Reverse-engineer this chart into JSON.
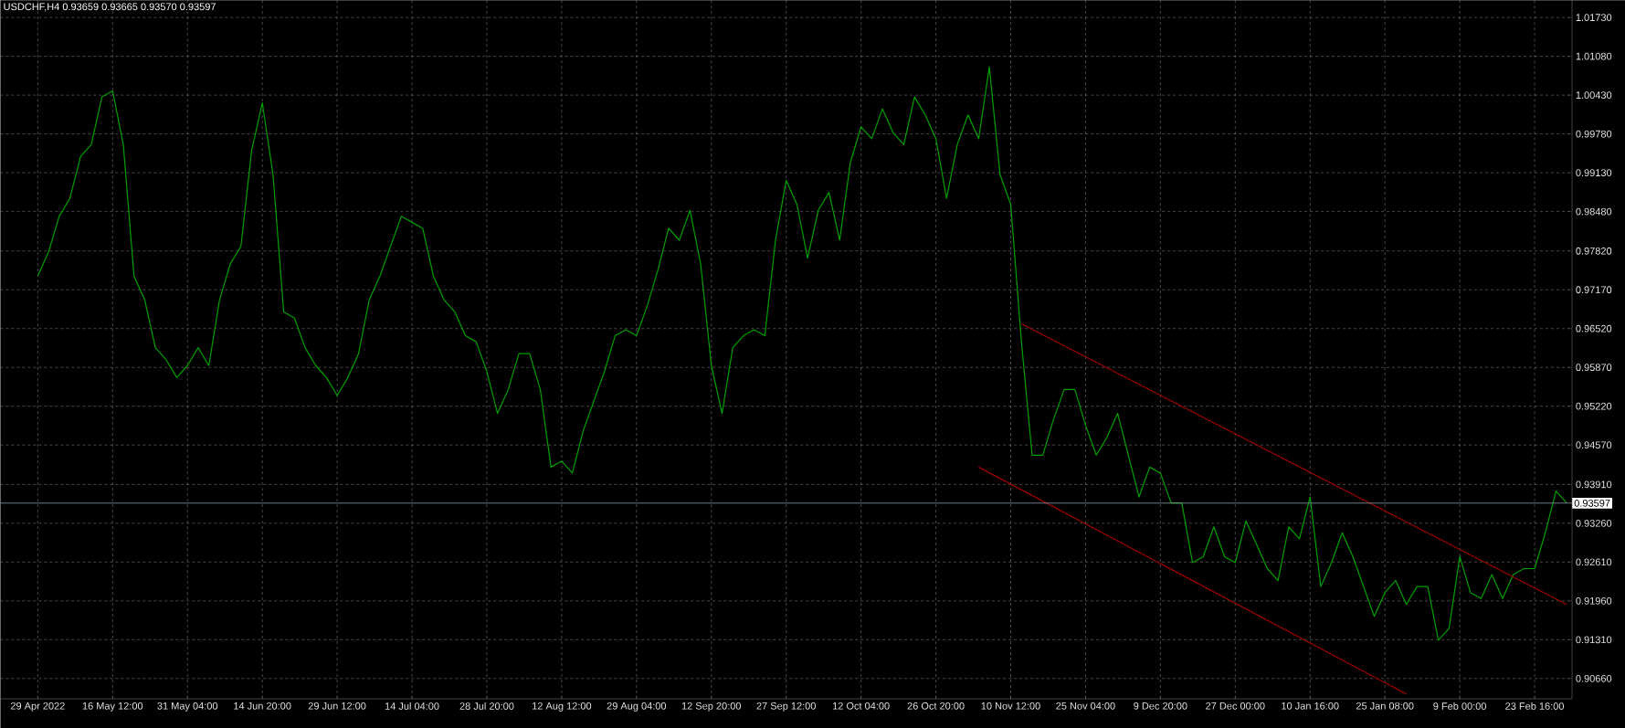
{
  "chart_data": {
    "type": "line",
    "title": "USDCHF,H4  0.93659 0.93665 0.93570 0.93597",
    "categories": [
      "29 Apr 2022",
      null,
      null,
      null,
      null,
      null,
      null,
      "16 May 12:00",
      null,
      null,
      null,
      null,
      null,
      null,
      "31 May 04:00",
      null,
      null,
      null,
      null,
      null,
      null,
      "14 Jun 20:00",
      null,
      null,
      null,
      null,
      null,
      null,
      "29 Jun 12:00",
      null,
      null,
      null,
      null,
      null,
      null,
      "14 Jul 04:00",
      null,
      null,
      null,
      null,
      null,
      null,
      "28 Jul 20:00",
      null,
      null,
      null,
      null,
      null,
      null,
      "12 Aug 12:00",
      null,
      null,
      null,
      null,
      null,
      null,
      "29 Aug 04:00",
      null,
      null,
      null,
      null,
      null,
      null,
      "12 Sep 20:00",
      null,
      null,
      null,
      null,
      null,
      null,
      "27 Sep 12:00",
      null,
      null,
      null,
      null,
      null,
      null,
      "12 Oct 04:00",
      null,
      null,
      null,
      null,
      null,
      null,
      "26 Oct 20:00",
      null,
      null,
      null,
      null,
      null,
      null,
      "10 Nov 12:00",
      null,
      null,
      null,
      null,
      null,
      null,
      "25 Nov 04:00",
      null,
      null,
      null,
      null,
      null,
      null,
      "9 Dec 20:00",
      null,
      null,
      null,
      null,
      null,
      null,
      "27 Dec 00:00",
      null,
      null,
      null,
      null,
      null,
      null,
      "10 Jan 16:00",
      null,
      null,
      null,
      null,
      null,
      null,
      "25 Jan 08:00",
      null,
      null,
      null,
      null,
      null,
      null,
      "9 Feb 00:00",
      null,
      null,
      null,
      null,
      null,
      null,
      "23 Feb 16:00",
      null,
      null,
      null
    ],
    "series": [
      {
        "color": "#00a000",
        "values": [
          0.974,
          0.978,
          0.984,
          0.987,
          0.994,
          0.996,
          1.004,
          1.005,
          0.996,
          0.974,
          0.97,
          0.962,
          0.96,
          0.957,
          0.959,
          0.962,
          0.959,
          0.97,
          0.976,
          0.979,
          0.995,
          1.003,
          0.991,
          0.968,
          0.967,
          0.962,
          0.959,
          0.957,
          0.954,
          0.957,
          0.961,
          0.97,
          0.974,
          0.979,
          0.984,
          0.983,
          0.982,
          0.974,
          0.97,
          0.968,
          0.964,
          0.963,
          0.958,
          0.951,
          0.955,
          0.961,
          0.961,
          0.955,
          0.942,
          0.943,
          0.941,
          0.948,
          0.953,
          0.958,
          0.964,
          0.965,
          0.964,
          0.969,
          0.975,
          0.982,
          0.98,
          0.985,
          0.976,
          0.959,
          0.951,
          0.962,
          0.964,
          0.965,
          0.964,
          0.98,
          0.99,
          0.986,
          0.977,
          0.985,
          0.988,
          0.98,
          0.993,
          0.999,
          0.997,
          1.002,
          0.998,
          0.996,
          1.004,
          1.001,
          0.997,
          0.987,
          0.996,
          1.001,
          0.997,
          1.009,
          0.991,
          0.986,
          0.963,
          0.944,
          0.944,
          0.95,
          0.955,
          0.955,
          0.949,
          0.944,
          0.947,
          0.951,
          0.944,
          0.937,
          0.942,
          0.941,
          0.936,
          0.936,
          0.926,
          0.927,
          0.932,
          0.927,
          0.926,
          0.933,
          0.929,
          0.925,
          0.923,
          0.932,
          0.93,
          0.937,
          0.922,
          0.926,
          0.931,
          0.927,
          0.922,
          0.917,
          0.921,
          0.923,
          0.919,
          0.922,
          0.922,
          0.913,
          0.915,
          0.927,
          0.921,
          0.92,
          0.924,
          0.92,
          0.924,
          0.925,
          0.925,
          0.931,
          0.938,
          0.936
        ]
      },
      {
        "type": "line",
        "color": "#a00000",
        "values": [
          null,
          null,
          null,
          null,
          null,
          null,
          null,
          null,
          null,
          null,
          null,
          null,
          null,
          null,
          null,
          null,
          null,
          null,
          null,
          null,
          null,
          null,
          null,
          null,
          null,
          null,
          null,
          null,
          null,
          null,
          null,
          null,
          null,
          null,
          null,
          null,
          null,
          null,
          null,
          null,
          null,
          null,
          null,
          null,
          null,
          null,
          null,
          null,
          null,
          null,
          null,
          null,
          null,
          null,
          null,
          null,
          null,
          null,
          null,
          null,
          null,
          null,
          null,
          null,
          null,
          null,
          null,
          null,
          null,
          null,
          null,
          null,
          null,
          null,
          null,
          null,
          null,
          null,
          null,
          null,
          null,
          null,
          null,
          null,
          null,
          null,
          null,
          null,
          null,
          null,
          null,
          null,
          0.966,
          null,
          null,
          null,
          null,
          null,
          null,
          null,
          null,
          null,
          null,
          null,
          null,
          null,
          null,
          null,
          null,
          null,
          null,
          null,
          null,
          null,
          null,
          null,
          null,
          null,
          null,
          null,
          null,
          null,
          null,
          null,
          null,
          null,
          null,
          null,
          null,
          null,
          null,
          null,
          null,
          null,
          null,
          null,
          null,
          null,
          null,
          null,
          null,
          null,
          null,
          0.919
        ]
      },
      {
        "type": "line",
        "color": "#a00000",
        "values": [
          null,
          null,
          null,
          null,
          null,
          null,
          null,
          null,
          null,
          null,
          null,
          null,
          null,
          null,
          null,
          null,
          null,
          null,
          null,
          null,
          null,
          null,
          null,
          null,
          null,
          null,
          null,
          null,
          null,
          null,
          null,
          null,
          null,
          null,
          null,
          null,
          null,
          null,
          null,
          null,
          null,
          null,
          null,
          null,
          null,
          null,
          null,
          null,
          null,
          null,
          null,
          null,
          null,
          null,
          null,
          null,
          null,
          null,
          null,
          null,
          null,
          null,
          null,
          null,
          null,
          null,
          null,
          null,
          null,
          null,
          null,
          null,
          null,
          null,
          null,
          null,
          null,
          null,
          null,
          null,
          null,
          null,
          null,
          null,
          null,
          null,
          null,
          null,
          0.942,
          null,
          null,
          null,
          null,
          null,
          null,
          null,
          null,
          null,
          null,
          null,
          null,
          null,
          null,
          null,
          null,
          null,
          null,
          null,
          null,
          null,
          null,
          null,
          null,
          null,
          null,
          null,
          null,
          null,
          null,
          null,
          null,
          null,
          null,
          null,
          null,
          null,
          null,
          null,
          0.904,
          null,
          null,
          null,
          null,
          null,
          null,
          null,
          null,
          null,
          null,
          null,
          null,
          null,
          null,
          null
        ]
      }
    ],
    "ylim": [
      0.9032,
      1.0202
    ],
    "yticks": [
      {
        "value": 0.9066,
        "label": "0.90660"
      },
      {
        "value": 0.9131,
        "label": "0.91310"
      },
      {
        "value": 0.9196,
        "label": "0.91960"
      },
      {
        "value": 0.9261,
        "label": "0.92610"
      },
      {
        "value": 0.9326,
        "label": "0.93260"
      },
      {
        "value": 0.9391,
        "label": "0.93910"
      },
      {
        "value": 0.9457,
        "label": "0.94570"
      },
      {
        "value": 0.9522,
        "label": "0.95220"
      },
      {
        "value": 0.9587,
        "label": "0.95870"
      },
      {
        "value": 0.9652,
        "label": "0.96520"
      },
      {
        "value": 0.9717,
        "label": "0.97170"
      },
      {
        "value": 0.9782,
        "label": "0.97820"
      },
      {
        "value": 0.9848,
        "label": "0.98480"
      },
      {
        "value": 0.9913,
        "label": "0.99130"
      },
      {
        "value": 0.9978,
        "label": "0.99780"
      },
      {
        "value": 1.0043,
        "label": "1.00430"
      },
      {
        "value": 1.0108,
        "label": "1.01080"
      },
      {
        "value": 1.0173,
        "label": "1.01730"
      }
    ],
    "ref_lines": [
      {
        "axis": "y",
        "value": 0.93597,
        "label": "0.93597",
        "color": "#8899aa"
      }
    ],
    "grid": true,
    "marker": "none"
  }
}
